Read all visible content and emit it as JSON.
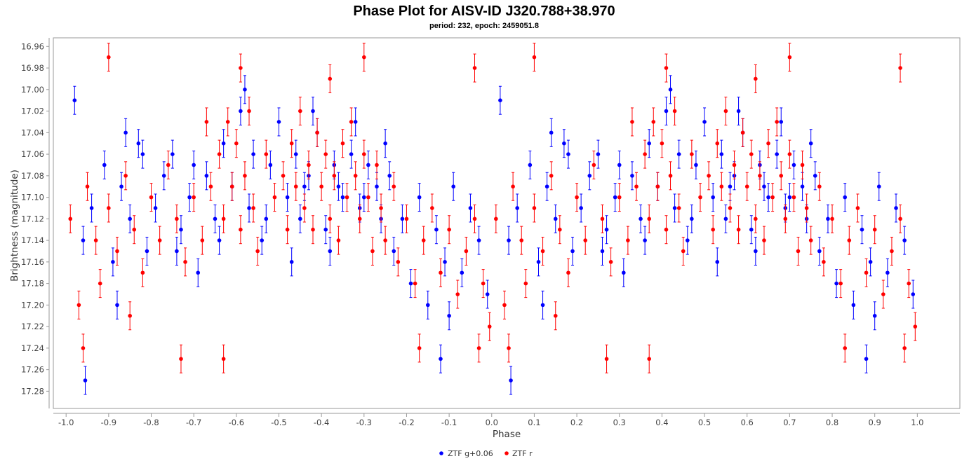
{
  "chart_data": {
    "type": "scatter",
    "title": "Phase Plot for AISV-ID J320.788+38.970",
    "subtitle": "period: 232, epoch: 2459051.8",
    "xlabel": "Phase",
    "ylabel": "Brightness (magnitude)",
    "xlim": [
      -1.03,
      1.1
    ],
    "ylim": [
      16.952,
      17.296
    ],
    "y_inverted": true,
    "xticks": [
      "-1.0",
      "-0.9",
      "-0.8",
      "-0.7",
      "-0.6",
      "-0.5",
      "-0.4",
      "-0.3",
      "-0.2",
      "-0.1",
      "0.0",
      "0.1",
      "0.2",
      "0.3",
      "0.4",
      "0.5",
      "0.6",
      "0.7",
      "0.8",
      "0.9",
      "1.0"
    ],
    "xtick_values": [
      -1.0,
      -0.9,
      -0.8,
      -0.7,
      -0.6,
      -0.5,
      -0.4,
      -0.3,
      -0.2,
      -0.1,
      0.0,
      0.1,
      0.2,
      0.3,
      0.4,
      0.5,
      0.6,
      0.7,
      0.8,
      0.9,
      1.0
    ],
    "yticks": [
      "16.96",
      "16.98",
      "17.00",
      "17.02",
      "17.04",
      "17.06",
      "17.08",
      "17.10",
      "17.12",
      "17.14",
      "17.16",
      "17.18",
      "17.20",
      "17.22",
      "17.24",
      "17.26",
      "17.28"
    ],
    "ytick_values": [
      16.96,
      16.98,
      17.0,
      17.02,
      17.04,
      17.06,
      17.08,
      17.1,
      17.12,
      17.14,
      17.16,
      17.18,
      17.2,
      17.22,
      17.24,
      17.26,
      17.28
    ],
    "grid": false,
    "legend_position": "bottom-center",
    "colors": {
      "g": "#0000ff",
      "r": "#ff0000",
      "frame": "#999999"
    },
    "series": [
      {
        "name": "ZTF g+0.06",
        "color": "#0000ff",
        "error": 0.013,
        "points": [
          [
            0.02,
            17.01
          ],
          [
            0.04,
            17.14
          ],
          [
            0.06,
            17.11
          ],
          [
            0.09,
            17.07
          ],
          [
            0.11,
            17.16
          ],
          [
            0.13,
            17.09
          ],
          [
            0.15,
            17.12
          ],
          [
            0.17,
            17.05
          ],
          [
            0.19,
            17.15
          ],
          [
            0.21,
            17.11
          ],
          [
            0.23,
            17.08
          ],
          [
            0.25,
            17.06
          ],
          [
            0.27,
            17.13
          ],
          [
            0.29,
            17.1
          ],
          [
            0.31,
            17.17
          ],
          [
            0.33,
            17.08
          ],
          [
            0.35,
            17.12
          ],
          [
            0.37,
            17.05
          ],
          [
            0.39,
            17.09
          ],
          [
            0.41,
            17.02
          ],
          [
            0.43,
            17.11
          ],
          [
            0.44,
            17.06
          ],
          [
            0.46,
            17.14
          ],
          [
            0.48,
            17.07
          ],
          [
            0.5,
            17.03
          ],
          [
            0.52,
            17.1
          ],
          [
            0.54,
            17.06
          ],
          [
            0.55,
            17.12
          ],
          [
            0.57,
            17.08
          ],
          [
            0.59,
            17.04
          ],
          [
            0.61,
            17.13
          ],
          [
            0.63,
            17.07
          ],
          [
            0.65,
            17.1
          ],
          [
            0.67,
            17.06
          ],
          [
            0.69,
            17.11
          ],
          [
            0.71,
            17.07
          ],
          [
            0.73,
            17.09
          ],
          [
            0.75,
            17.05
          ],
          [
            0.77,
            17.15
          ],
          [
            0.79,
            17.12
          ],
          [
            0.81,
            17.18
          ],
          [
            0.83,
            17.1
          ],
          [
            0.85,
            17.2
          ],
          [
            0.87,
            17.13
          ],
          [
            0.89,
            17.16
          ],
          [
            0.91,
            17.09
          ],
          [
            0.93,
            17.17
          ],
          [
            0.95,
            17.11
          ],
          [
            0.97,
            17.14
          ],
          [
            0.99,
            17.19
          ],
          [
            0.045,
            17.27
          ],
          [
            0.14,
            17.04
          ],
          [
            0.26,
            17.15
          ],
          [
            0.36,
            17.14
          ],
          [
            0.42,
            17.0
          ],
          [
            0.53,
            17.16
          ],
          [
            0.58,
            17.02
          ],
          [
            0.64,
            17.09
          ],
          [
            0.68,
            17.03
          ],
          [
            0.74,
            17.12
          ],
          [
            0.88,
            17.25
          ],
          [
            0.9,
            17.21
          ],
          [
            0.12,
            17.2
          ],
          [
            0.18,
            17.06
          ],
          [
            0.3,
            17.07
          ],
          [
            0.47,
            17.12
          ],
          [
            0.56,
            17.09
          ],
          [
            0.62,
            17.15
          ],
          [
            0.7,
            17.1
          ],
          [
            0.76,
            17.08
          ]
        ]
      },
      {
        "name": "ZTF r",
        "color": "#ff0000",
        "error": 0.013,
        "points": [
          [
            0.01,
            17.12
          ],
          [
            0.03,
            17.2
          ],
          [
            0.05,
            17.09
          ],
          [
            0.07,
            17.14
          ],
          [
            0.08,
            17.18
          ],
          [
            0.1,
            17.11
          ],
          [
            0.12,
            17.15
          ],
          [
            0.14,
            17.08
          ],
          [
            0.16,
            17.13
          ],
          [
            0.18,
            17.17
          ],
          [
            0.2,
            17.1
          ],
          [
            0.22,
            17.14
          ],
          [
            0.24,
            17.07
          ],
          [
            0.26,
            17.12
          ],
          [
            0.28,
            17.16
          ],
          [
            0.3,
            17.1
          ],
          [
            0.32,
            17.14
          ],
          [
            0.34,
            17.09
          ],
          [
            0.36,
            17.06
          ],
          [
            0.37,
            17.12
          ],
          [
            0.38,
            17.03
          ],
          [
            0.39,
            17.09
          ],
          [
            0.4,
            17.05
          ],
          [
            0.41,
            17.13
          ],
          [
            0.42,
            17.08
          ],
          [
            0.43,
            17.02
          ],
          [
            0.44,
            17.11
          ],
          [
            0.45,
            17.15
          ],
          [
            0.47,
            17.06
          ],
          [
            0.49,
            17.1
          ],
          [
            0.51,
            17.08
          ],
          [
            0.52,
            17.13
          ],
          [
            0.53,
            17.05
          ],
          [
            0.54,
            17.09
          ],
          [
            0.55,
            17.02
          ],
          [
            0.56,
            17.11
          ],
          [
            0.57,
            17.07
          ],
          [
            0.58,
            17.13
          ],
          [
            0.59,
            17.04
          ],
          [
            0.6,
            17.09
          ],
          [
            0.61,
            17.06
          ],
          [
            0.62,
            17.12
          ],
          [
            0.63,
            17.08
          ],
          [
            0.64,
            17.14
          ],
          [
            0.65,
            17.05
          ],
          [
            0.66,
            17.1
          ],
          [
            0.67,
            17.03
          ],
          [
            0.68,
            17.08
          ],
          [
            0.69,
            17.12
          ],
          [
            0.7,
            17.06
          ],
          [
            0.71,
            17.1
          ],
          [
            0.72,
            17.15
          ],
          [
            0.73,
            17.07
          ],
          [
            0.74,
            17.11
          ],
          [
            0.75,
            17.14
          ],
          [
            0.77,
            17.09
          ],
          [
            0.78,
            17.16
          ],
          [
            0.8,
            17.12
          ],
          [
            0.82,
            17.18
          ],
          [
            0.84,
            17.14
          ],
          [
            0.86,
            17.11
          ],
          [
            0.88,
            17.17
          ],
          [
            0.9,
            17.13
          ],
          [
            0.92,
            17.19
          ],
          [
            0.94,
            17.15
          ],
          [
            0.96,
            17.12
          ],
          [
            0.98,
            17.18
          ],
          [
            0.995,
            17.22
          ],
          [
            0.04,
            17.24
          ],
          [
            0.15,
            17.21
          ],
          [
            0.27,
            17.25
          ],
          [
            0.37,
            17.25
          ],
          [
            0.7,
            16.97
          ],
          [
            0.62,
            16.99
          ],
          [
            0.41,
            16.98
          ],
          [
            0.83,
            17.24
          ],
          [
            0.97,
            17.24
          ],
          [
            0.96,
            16.98
          ],
          [
            0.1,
            16.97
          ],
          [
            0.33,
            17.03
          ]
        ]
      }
    ]
  }
}
